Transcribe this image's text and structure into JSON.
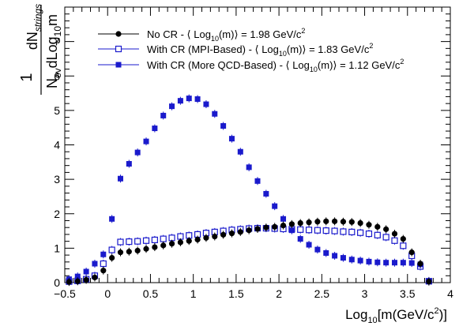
{
  "chart_data": {
    "type": "scatter",
    "title": "",
    "xlim": [
      -0.5,
      4.0
    ],
    "ylim": [
      0,
      8
    ],
    "x_ticks": [
      "−0.5",
      "0",
      "0.5",
      "1",
      "1.5",
      "2",
      "2.5",
      "3",
      "3.5",
      "4"
    ],
    "x_tick_values": [
      -0.5,
      0,
      0.5,
      1,
      1.5,
      2,
      2.5,
      3,
      3.5,
      4
    ],
    "y_ticks": [
      "0",
      "1",
      "2",
      "3",
      "4",
      "5",
      "6",
      "7"
    ],
    "y_tick_values": [
      0,
      1,
      2,
      3,
      4,
      5,
      6,
      7
    ],
    "xlabel": {
      "pre": "Log",
      "sub": "10",
      "mid": "[m(GeV/c",
      "sup": "2",
      "post": ")]"
    },
    "ylabel": {
      "one": "1",
      "dN": "dN",
      "strings_sub": "strings",
      "N": "N",
      "ev_sub": "ev",
      "dLog": "dLog",
      "ten_sub": "10",
      "m": "m"
    },
    "legend_position": "top-left",
    "colors": {
      "no_cr": "#000000",
      "mpi": "#1a1acc",
      "qcd": "#1a1acc"
    },
    "x": [
      -0.45,
      -0.35,
      -0.25,
      -0.15,
      -0.05,
      0.05,
      0.15,
      0.25,
      0.35,
      0.45,
      0.55,
      0.65,
      0.75,
      0.85,
      0.95,
      1.05,
      1.15,
      1.25,
      1.35,
      1.45,
      1.55,
      1.65,
      1.75,
      1.85,
      1.95,
      2.05,
      2.15,
      2.25,
      2.35,
      2.45,
      2.55,
      2.65,
      2.75,
      2.85,
      2.95,
      3.05,
      3.15,
      3.25,
      3.35,
      3.45,
      3.55,
      3.65,
      3.75
    ],
    "series": [
      {
        "key": "no_cr",
        "marker": "filled-circle",
        "legend": {
          "pre": "No CR - ⟨ Log",
          "sub": "10",
          "mid": "(m)⟩ = 1.98 GeV/c",
          "sup": "2"
        },
        "values": [
          0.02,
          0.04,
          0.08,
          0.15,
          0.35,
          0.72,
          0.88,
          0.9,
          0.93,
          0.98,
          1.03,
          1.08,
          1.13,
          1.17,
          1.21,
          1.25,
          1.3,
          1.34,
          1.39,
          1.43,
          1.47,
          1.52,
          1.56,
          1.6,
          1.62,
          1.66,
          1.7,
          1.73,
          1.75,
          1.77,
          1.78,
          1.78,
          1.77,
          1.76,
          1.73,
          1.68,
          1.62,
          1.55,
          1.42,
          1.27,
          0.88,
          0.55,
          0.03
        ]
      },
      {
        "key": "mpi",
        "marker": "open-square",
        "legend": {
          "pre": "With CR (MPI-Based) - ⟨ Log",
          "sub": "10",
          "mid": "(m)⟩ = 1.83 GeV/c",
          "sup": "2"
        },
        "values": [
          0.03,
          0.05,
          0.1,
          0.2,
          0.55,
          0.95,
          1.18,
          1.19,
          1.2,
          1.22,
          1.24,
          1.27,
          1.3,
          1.34,
          1.37,
          1.4,
          1.44,
          1.47,
          1.5,
          1.53,
          1.55,
          1.57,
          1.58,
          1.58,
          1.57,
          1.56,
          1.55,
          1.54,
          1.53,
          1.52,
          1.51,
          1.5,
          1.48,
          1.47,
          1.45,
          1.42,
          1.38,
          1.32,
          1.22,
          1.07,
          0.78,
          0.47,
          0.04
        ]
      },
      {
        "key": "qcd",
        "marker": "filled-square",
        "legend": {
          "pre": "With CR (More QCD-Based) - ⟨ Log",
          "sub": "10",
          "mid": "(m)⟩ = 1.12 GeV/c",
          "sup": "2"
        },
        "values": [
          0.1,
          0.18,
          0.32,
          0.55,
          0.82,
          1.85,
          3.02,
          3.45,
          3.78,
          4.1,
          4.48,
          4.85,
          5.12,
          5.28,
          5.35,
          5.33,
          5.18,
          4.9,
          4.55,
          4.18,
          3.8,
          3.35,
          2.95,
          2.58,
          2.22,
          1.85,
          1.52,
          1.27,
          1.1,
          0.96,
          0.86,
          0.78,
          0.72,
          0.67,
          0.64,
          0.61,
          0.59,
          0.58,
          0.58,
          0.58,
          0.57,
          0.53,
          0.05
        ]
      }
    ]
  }
}
